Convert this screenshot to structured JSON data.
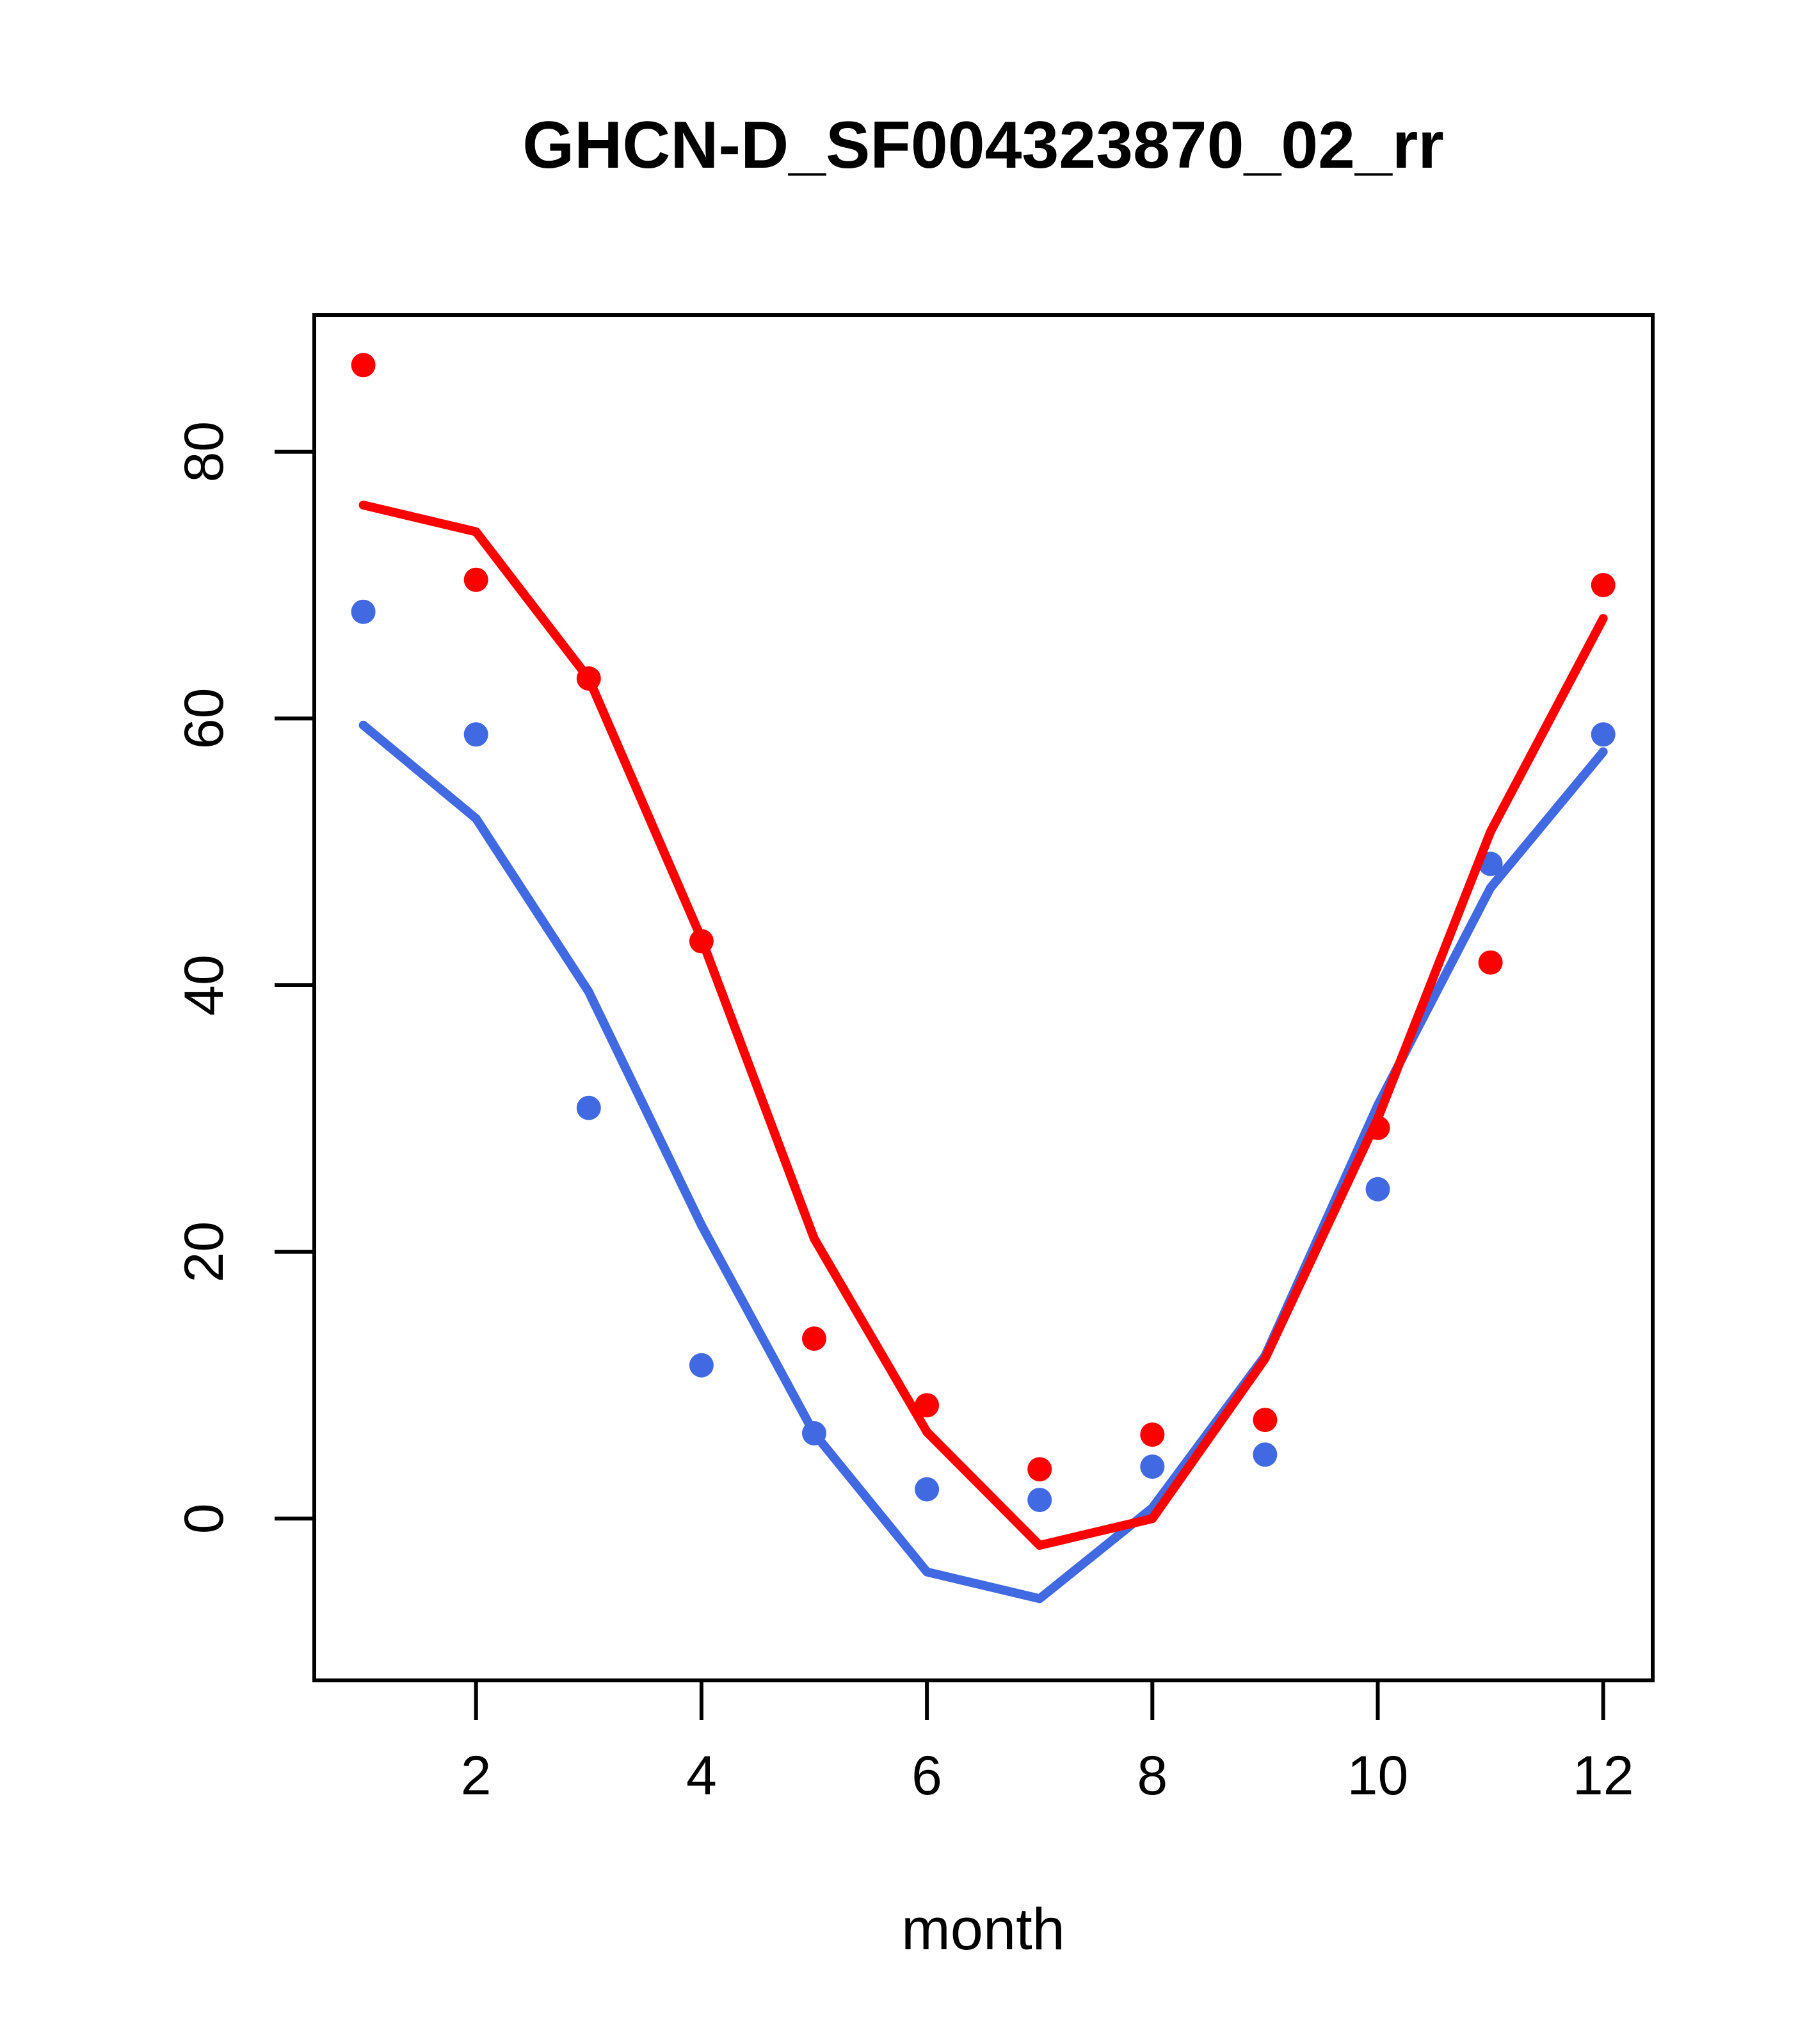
{
  "chart_data": {
    "type": "scatter",
    "title": "GHCN-D_SF004323870_02_rr",
    "xlabel": "month",
    "ylabel": "",
    "x": [
      1,
      2,
      3,
      4,
      5,
      6,
      7,
      8,
      9,
      10,
      11,
      12
    ],
    "x_ticks": [
      2,
      4,
      6,
      8,
      10,
      12
    ],
    "y_ticks": [
      0,
      20,
      40,
      60,
      80
    ],
    "xlim": [
      0.56,
      12.44
    ],
    "ylim": [
      -12,
      90
    ],
    "grid": false,
    "legend_position": "none",
    "colors": {
      "red": "#FF0000",
      "blue": "#4169E1",
      "axis": "#000000",
      "background": "#FFFFFF"
    },
    "series": [
      {
        "name": "blue-points",
        "type": "scatter",
        "color": "#4169E1",
        "values": [
          68.0,
          58.8,
          30.8,
          11.5,
          6.4,
          2.2,
          1.4,
          3.9,
          4.8,
          24.7,
          49.1,
          58.8
        ]
      },
      {
        "name": "red-points",
        "type": "scatter",
        "color": "#FF0000",
        "values": [
          86.5,
          70.4,
          63.0,
          43.3,
          13.5,
          8.5,
          3.7,
          6.3,
          7.4,
          29.3,
          41.7,
          70.0
        ]
      },
      {
        "name": "blue-line",
        "type": "line",
        "color": "#4169E1",
        "values": [
          59.5,
          52.5,
          39.5,
          22.0,
          6.4,
          -4.0,
          -6.0,
          0.8,
          12.2,
          31.0,
          47.3,
          57.5
        ]
      },
      {
        "name": "red-line",
        "type": "line",
        "color": "#FF0000",
        "values": [
          76.0,
          74.0,
          63.0,
          43.5,
          21.0,
          6.5,
          -2.0,
          0.0,
          12.0,
          30.0,
          51.5,
          67.5
        ]
      }
    ]
  }
}
